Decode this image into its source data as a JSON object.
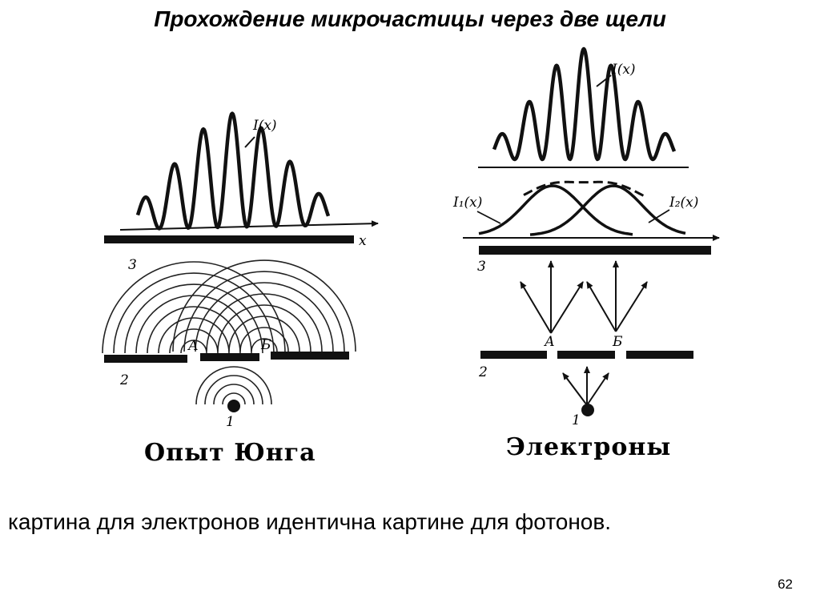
{
  "slide": {
    "title": "Прохождение микрочастицы через две щели",
    "bottom_text": "картина для электронов идентична картине для фотонов.",
    "page_number": "62"
  },
  "left_diagram": {
    "intensity_label": "I(x)",
    "axis_label": "x",
    "screen_label": "3",
    "barrier_label": "2",
    "source_label": "1",
    "slit_a_label": "А",
    "slit_b_label": "Б",
    "caption": "Опыт Юнга"
  },
  "right_diagram": {
    "intensity_label": "I(x)",
    "i1_label": "I₁(x)",
    "i2_label": "I₂(x)",
    "screen_label": "3",
    "barrier_label": "2",
    "source_label": "1",
    "slit_a_label": "А",
    "slit_b_label": "Б",
    "caption": "Электроны"
  }
}
